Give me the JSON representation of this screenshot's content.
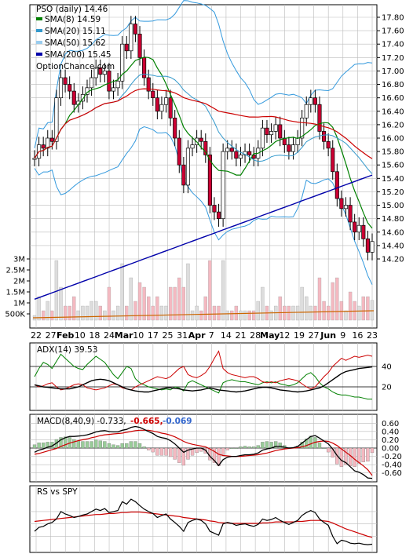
{
  "chart_data": {
    "type": "line",
    "title": "PSO (daily) 14.46",
    "watermark": "OptionChance.com",
    "legend": [
      {
        "label": "SMA(8) 14.59",
        "color": "#008000"
      },
      {
        "label": "SMA(20) 15.11",
        "color": "#3399cc"
      },
      {
        "label": "SMA(50) 15.62",
        "color": "#99ccee"
      },
      {
        "label": "SMA(200) 15.45",
        "color": "#0000aa"
      }
    ],
    "x_labels": [
      "22",
      "27",
      "Feb",
      "10",
      "18",
      "24",
      "Mar",
      "10",
      "17",
      "25",
      "31",
      "Apr",
      "7",
      "14",
      "21",
      "28",
      "May",
      "12",
      "19",
      "27",
      "Jun",
      "9",
      "16",
      "23"
    ],
    "bold_x_labels": [
      "Feb",
      "Mar",
      "Apr",
      "May",
      "Jun"
    ],
    "price_axis": {
      "ticks": [
        "17.80",
        "17.60",
        "17.40",
        "17.20",
        "17.00",
        "16.80",
        "16.60",
        "16.40",
        "16.20",
        "16.00",
        "15.80",
        "15.60",
        "15.40",
        "15.20",
        "15.00",
        "14.80",
        "14.60",
        "14.40",
        "14.20"
      ],
      "ylim": [
        14.2,
        17.8
      ]
    },
    "volume_axis": {
      "ticks": [
        "3M",
        "2.5M",
        "2M",
        "1.5M",
        "1M",
        "500K"
      ]
    },
    "close": [
      15.7,
      15.9,
      15.85,
      16.0,
      15.95,
      16.6,
      16.9,
      16.8,
      16.7,
      16.5,
      16.55,
      16.65,
      16.75,
      16.9,
      17.05,
      16.95,
      17.0,
      16.7,
      16.75,
      16.85,
      17.4,
      17.3,
      17.7,
      17.55,
      17.2,
      16.9,
      16.7,
      16.6,
      16.4,
      16.5,
      16.6,
      16.3,
      16.0,
      15.6,
      15.3,
      15.85,
      15.9,
      16.0,
      15.95,
      15.75,
      15.0,
      14.9,
      14.8,
      15.8,
      15.85,
      15.8,
      15.7,
      15.75,
      15.8,
      15.75,
      15.7,
      15.85,
      16.15,
      16.05,
      16.1,
      16.2,
      16.0,
      15.9,
      15.8,
      15.9,
      16.0,
      16.3,
      16.5,
      16.6,
      16.5,
      16.1,
      15.95,
      15.85,
      15.5,
      15.1,
      14.95,
      15.0,
      14.75,
      14.6,
      14.7,
      14.5,
      14.3,
      14.46
    ],
    "adx": {
      "title": "ADX(14) 39.53",
      "ticks": [
        "40",
        "20"
      ],
      "ylim": [
        0,
        60
      ],
      "reference_levels": [
        20,
        40
      ],
      "adx": [
        22,
        21,
        20,
        19.5,
        19,
        18.5,
        18,
        18,
        18,
        19,
        20,
        22,
        24,
        26,
        27,
        27.5,
        27,
        26,
        24,
        22,
        20,
        18,
        17,
        16,
        15.5,
        15,
        15,
        16,
        17,
        18,
        19,
        19,
        18.5,
        18,
        17,
        16.5,
        16,
        16.5,
        17,
        18,
        19,
        18,
        17,
        16.5,
        16,
        15.5,
        15,
        15.5,
        16,
        17,
        18,
        19,
        19.5,
        19.5,
        19,
        18,
        17,
        16.5,
        16,
        15.5,
        15,
        15.5,
        16,
        17,
        18,
        19,
        21,
        24,
        27,
        30,
        33,
        35,
        36,
        37,
        38,
        38.5,
        39,
        39.5
      ],
      "plus_di": [
        30,
        38,
        44,
        42,
        38,
        45,
        52,
        48,
        44,
        40,
        38,
        37,
        42,
        46,
        50,
        47,
        44,
        38,
        32,
        28,
        34,
        40,
        38,
        28,
        24,
        22,
        20,
        19,
        18,
        17,
        18,
        17,
        20,
        19,
        16,
        24,
        26,
        24,
        22,
        20,
        18,
        16,
        14,
        24,
        26,
        27,
        26,
        25,
        25,
        24,
        23,
        22,
        24,
        25,
        24,
        25,
        23,
        22,
        21,
        22,
        24,
        28,
        32,
        34,
        30,
        24,
        20,
        18,
        15,
        13,
        12,
        12,
        11,
        10,
        10,
        9,
        8,
        8
      ],
      "minus_di": [
        22,
        20,
        21,
        23,
        24,
        20,
        17,
        18,
        20,
        22,
        23,
        22,
        19,
        18,
        17,
        18,
        19,
        21,
        23,
        22,
        19,
        18,
        17,
        20,
        22,
        24,
        26,
        28,
        30,
        29,
        28,
        30,
        34,
        38,
        40,
        32,
        30,
        29,
        31,
        34,
        40,
        48,
        55,
        38,
        34,
        32,
        31,
        30,
        29,
        30,
        30,
        28,
        25,
        24,
        25,
        24,
        26,
        27,
        28,
        27,
        26,
        23,
        20,
        18,
        20,
        25,
        30,
        34,
        40,
        44,
        48,
        46,
        48,
        50,
        49,
        50,
        51,
        50
      ]
    },
    "macd": {
      "title": "MACD(8,40,9) -0.733,",
      "signal_label": "-0.665,",
      "hist_label": "-0.069",
      "ticks": [
        "0.60",
        "0.40",
        "0.20",
        "0.00",
        "-0.20",
        "-0.40",
        "-0.60"
      ],
      "ylim": [
        -0.7,
        0.7
      ],
      "macd": [
        -0.1,
        -0.05,
        -0.02,
        0.02,
        0.05,
        0.12,
        0.2,
        0.25,
        0.28,
        0.28,
        0.29,
        0.3,
        0.32,
        0.35,
        0.39,
        0.41,
        0.42,
        0.4,
        0.39,
        0.39,
        0.43,
        0.45,
        0.5,
        0.52,
        0.5,
        0.45,
        0.4,
        0.35,
        0.28,
        0.25,
        0.23,
        0.18,
        0.1,
        0.0,
        -0.1,
        -0.05,
        -0.02,
        0.0,
        0.0,
        -0.05,
        -0.2,
        -0.3,
        -0.42,
        -0.28,
        -0.22,
        -0.2,
        -0.2,
        -0.18,
        -0.16,
        -0.16,
        -0.15,
        -0.12,
        -0.05,
        -0.02,
        0.0,
        0.04,
        0.04,
        0.02,
        0.0,
        0.01,
        0.04,
        0.12,
        0.2,
        0.28,
        0.3,
        0.24,
        0.17,
        0.1,
        -0.02,
        -0.18,
        -0.3,
        -0.35,
        -0.45,
        -0.55,
        -0.58,
        -0.64,
        -0.72,
        -0.73
      ],
      "signal": [
        -0.15,
        -0.13,
        -0.1,
        -0.07,
        -0.04,
        -0.01,
        0.04,
        0.08,
        0.12,
        0.15,
        0.18,
        0.2,
        0.22,
        0.25,
        0.27,
        0.3,
        0.32,
        0.33,
        0.34,
        0.35,
        0.36,
        0.38,
        0.4,
        0.42,
        0.43,
        0.43,
        0.43,
        0.41,
        0.39,
        0.36,
        0.34,
        0.31,
        0.27,
        0.22,
        0.16,
        0.12,
        0.09,
        0.07,
        0.05,
        0.03,
        -0.02,
        -0.08,
        -0.15,
        -0.18,
        -0.19,
        -0.2,
        -0.2,
        -0.2,
        -0.19,
        -0.18,
        -0.17,
        -0.16,
        -0.14,
        -0.12,
        -0.09,
        -0.06,
        -0.04,
        -0.02,
        -0.01,
        0.0,
        0.01,
        0.03,
        0.06,
        0.1,
        0.14,
        0.16,
        0.17,
        0.16,
        0.12,
        0.06,
        -0.02,
        -0.1,
        -0.18,
        -0.27,
        -0.35,
        -0.43,
        -0.52,
        -0.66
      ]
    },
    "rs": {
      "title": "RS vs SPY",
      "rs": [
        0.3,
        0.38,
        0.4,
        0.45,
        0.48,
        0.55,
        0.7,
        0.65,
        0.62,
        0.58,
        0.6,
        0.63,
        0.65,
        0.7,
        0.75,
        0.72,
        0.76,
        0.68,
        0.7,
        0.72,
        0.9,
        0.85,
        0.95,
        0.9,
        0.82,
        0.75,
        0.7,
        0.66,
        0.58,
        0.62,
        0.65,
        0.55,
        0.48,
        0.4,
        0.3,
        0.48,
        0.52,
        0.55,
        0.52,
        0.45,
        0.3,
        0.26,
        0.22,
        0.45,
        0.48,
        0.46,
        0.42,
        0.44,
        0.45,
        0.42,
        0.4,
        0.44,
        0.55,
        0.52,
        0.54,
        0.58,
        0.52,
        0.48,
        0.44,
        0.48,
        0.52,
        0.62,
        0.68,
        0.72,
        0.68,
        0.55,
        0.48,
        0.42,
        0.2,
        0.05,
        0.12,
        0.1,
        0.06,
        0.05,
        0.06,
        0.04,
        0.03,
        0.04
      ],
      "rs_ma": [
        0.5,
        0.51,
        0.52,
        0.53,
        0.54,
        0.55,
        0.56,
        0.57,
        0.58,
        0.59,
        0.6,
        0.61,
        0.62,
        0.63,
        0.64,
        0.64,
        0.65,
        0.66,
        0.66,
        0.67,
        0.68,
        0.68,
        0.69,
        0.69,
        0.69,
        0.68,
        0.67,
        0.66,
        0.65,
        0.64,
        0.63,
        0.62,
        0.61,
        0.6,
        0.58,
        0.57,
        0.56,
        0.55,
        0.54,
        0.53,
        0.51,
        0.5,
        0.48,
        0.47,
        0.47,
        0.46,
        0.46,
        0.46,
        0.46,
        0.46,
        0.46,
        0.46,
        0.47,
        0.47,
        0.48,
        0.49,
        0.49,
        0.49,
        0.49,
        0.49,
        0.5,
        0.5,
        0.51,
        0.52,
        0.52,
        0.52,
        0.51,
        0.5,
        0.47,
        0.43,
        0.39,
        0.35,
        0.32,
        0.29,
        0.26,
        0.23,
        0.2,
        0.18
      ]
    }
  }
}
